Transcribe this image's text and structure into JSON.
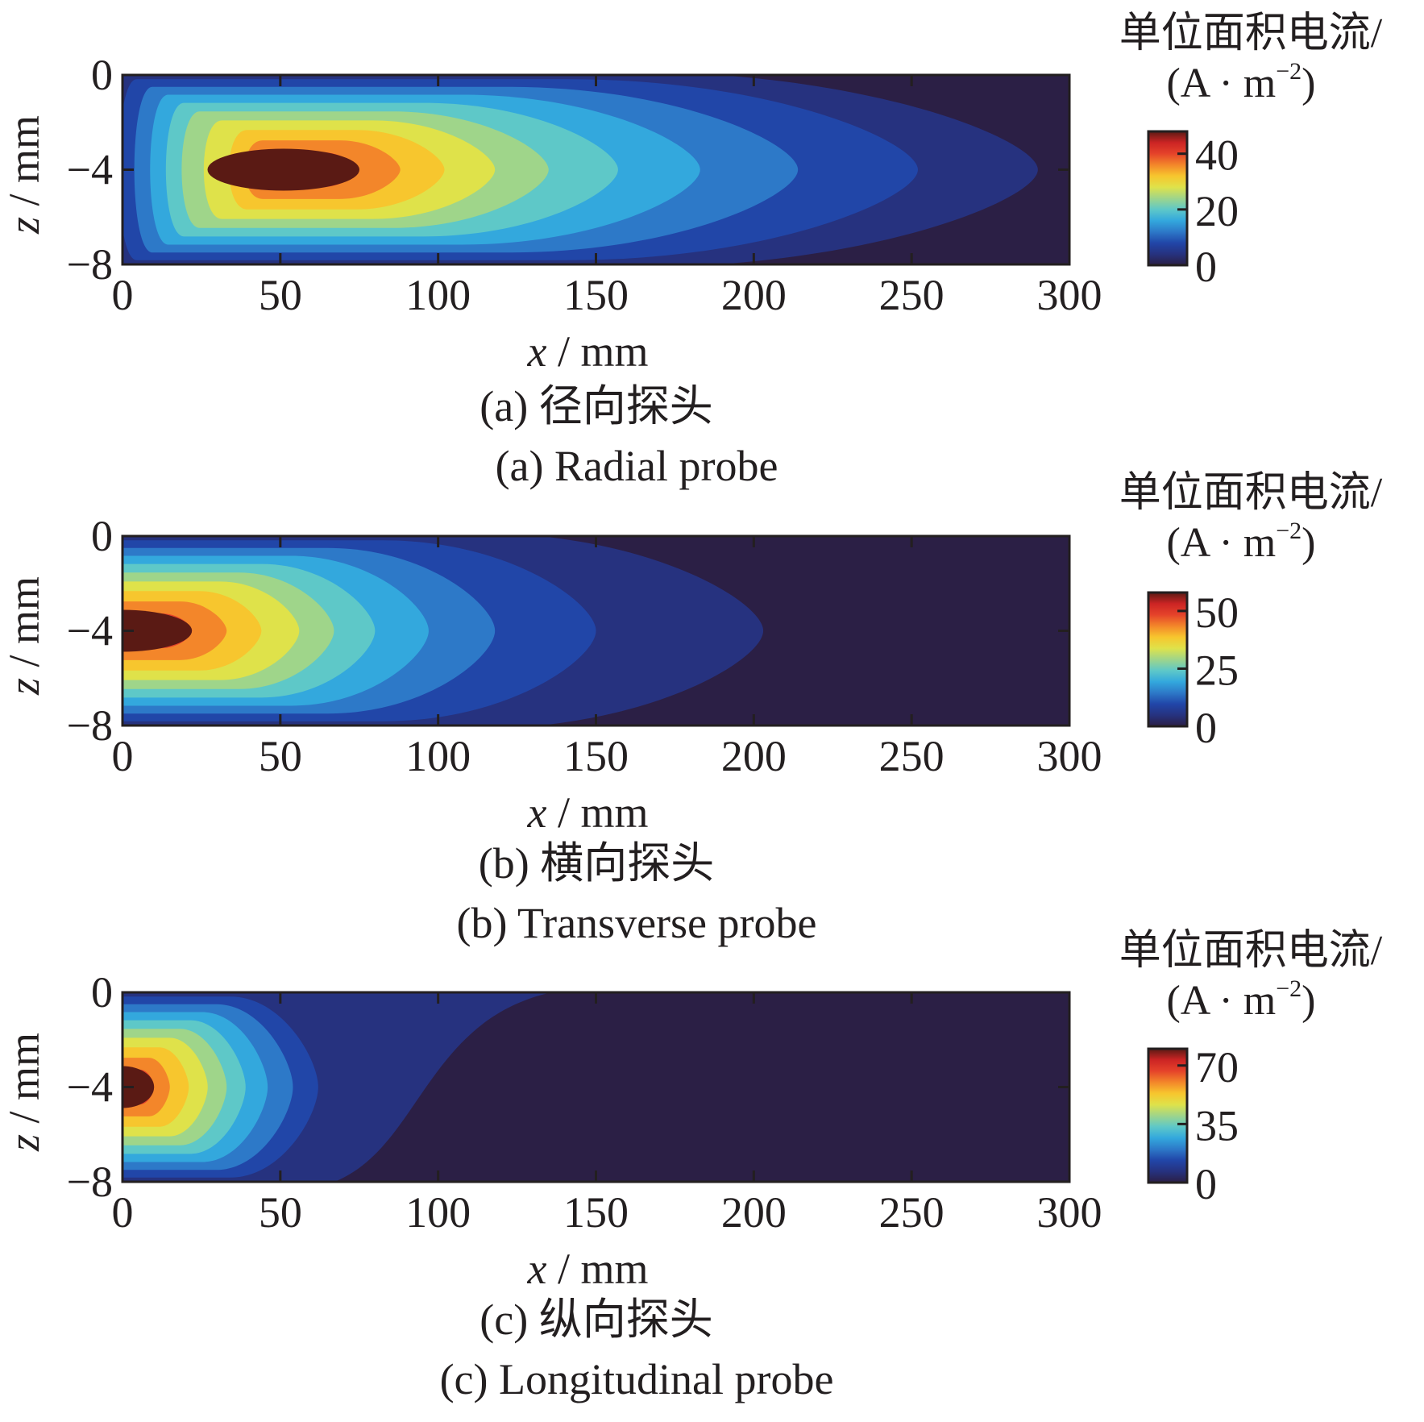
{
  "chart_data": [
    {
      "type": "heatmap",
      "panel": "a",
      "caption_zh": "(a)  径向探头",
      "caption_en": "(a)  Radial probe",
      "xlabel_var": "x",
      "xlabel_unit": " / mm",
      "ylabel_var": "z",
      "ylabel_unit": " / mm",
      "xlim": [
        0,
        300
      ],
      "ylim": [
        -8,
        0
      ],
      "x_ticks": [
        "0",
        "50",
        "100",
        "150",
        "200",
        "250",
        "300"
      ],
      "y_ticks": [
        "0",
        "−4",
        "−8"
      ],
      "colorbar_title_zh": "单位面积电流/",
      "colorbar_unit": "(A · m",
      "colorbar_unit_sup": "−2",
      "colorbar_unit_close": ")",
      "colorbar_ticks": [
        "40",
        "20",
        "0"
      ],
      "colorbar_range": [
        0,
        48
      ],
      "peak": {
        "x": 50,
        "z": -4,
        "value": 48
      },
      "contour_levels": [
        0,
        5,
        10,
        15,
        20,
        25,
        30,
        35,
        40,
        45
      ],
      "contour_extent_x": [
        [
          0,
          290
        ],
        [
          5,
          252
        ],
        [
          10,
          214
        ],
        [
          15,
          183
        ],
        [
          20,
          157
        ],
        [
          25,
          135
        ],
        [
          32,
          118
        ],
        [
          40,
          102
        ],
        [
          45,
          88
        ],
        [
          50,
          74
        ]
      ]
    },
    {
      "type": "heatmap",
      "panel": "b",
      "caption_zh": "(b)  横向探头",
      "caption_en": "(b)  Transverse probe",
      "xlabel_var": "x",
      "xlabel_unit": " / mm",
      "ylabel_var": "z",
      "ylabel_unit": " / mm",
      "xlim": [
        0,
        300
      ],
      "ylim": [
        -8,
        0
      ],
      "x_ticks": [
        "0",
        "50",
        "100",
        "150",
        "200",
        "250",
        "300"
      ],
      "y_ticks": [
        "0",
        "−4",
        "−8"
      ],
      "colorbar_title_zh": "单位面积电流/",
      "colorbar_unit": "(A · m",
      "colorbar_unit_sup": "−2",
      "colorbar_unit_close": ")",
      "colorbar_ticks": [
        "50",
        "25",
        "0"
      ],
      "colorbar_range": [
        0,
        58
      ],
      "peak": {
        "x": 0,
        "z": -4,
        "value": 58
      },
      "contour_extent_x": [
        [
          0,
          203
        ],
        [
          0,
          150
        ],
        [
          0,
          118
        ],
        [
          0,
          97
        ],
        [
          0,
          80
        ],
        [
          0,
          67
        ],
        [
          0,
          56
        ],
        [
          0,
          44
        ],
        [
          0,
          33
        ],
        [
          0,
          22
        ]
      ]
    },
    {
      "type": "heatmap",
      "panel": "c",
      "caption_zh": "(c)  纵向探头",
      "caption_en": "(c)  Longitudinal probe",
      "xlabel_var": "x",
      "xlabel_unit": " / mm",
      "ylabel_var": "z",
      "ylabel_unit": " / mm",
      "xlim": [
        0,
        300
      ],
      "ylim": [
        -8,
        0
      ],
      "x_ticks": [
        "0",
        "50",
        "100",
        "150",
        "200",
        "250",
        "300"
      ],
      "y_ticks": [
        "0",
        "−4",
        "−8"
      ],
      "colorbar_title_zh": "单位面积电流/",
      "colorbar_unit": "(A · m",
      "colorbar_unit_sup": "−2",
      "colorbar_unit_close": ")",
      "colorbar_ticks": [
        "70",
        "35",
        "0"
      ],
      "colorbar_range": [
        0,
        80
      ],
      "peak": {
        "x": 0,
        "z": -4,
        "value": 80
      },
      "contour_extent_x": [
        [
          0,
          140
        ],
        [
          0,
          62
        ],
        [
          0,
          54
        ],
        [
          0,
          46
        ],
        [
          0,
          39
        ],
        [
          0,
          33
        ],
        [
          0,
          27
        ],
        [
          0,
          21
        ],
        [
          0,
          15
        ],
        [
          0,
          10
        ]
      ]
    }
  ],
  "colormap": [
    "#2b1f45",
    "#26327f",
    "#2146a8",
    "#2d79c8",
    "#33a8dd",
    "#5ec8c8",
    "#9fd58a",
    "#dfe24a",
    "#f7c62e",
    "#f3862a",
    "#e5432a",
    "#cc2424",
    "#5a1a14"
  ]
}
